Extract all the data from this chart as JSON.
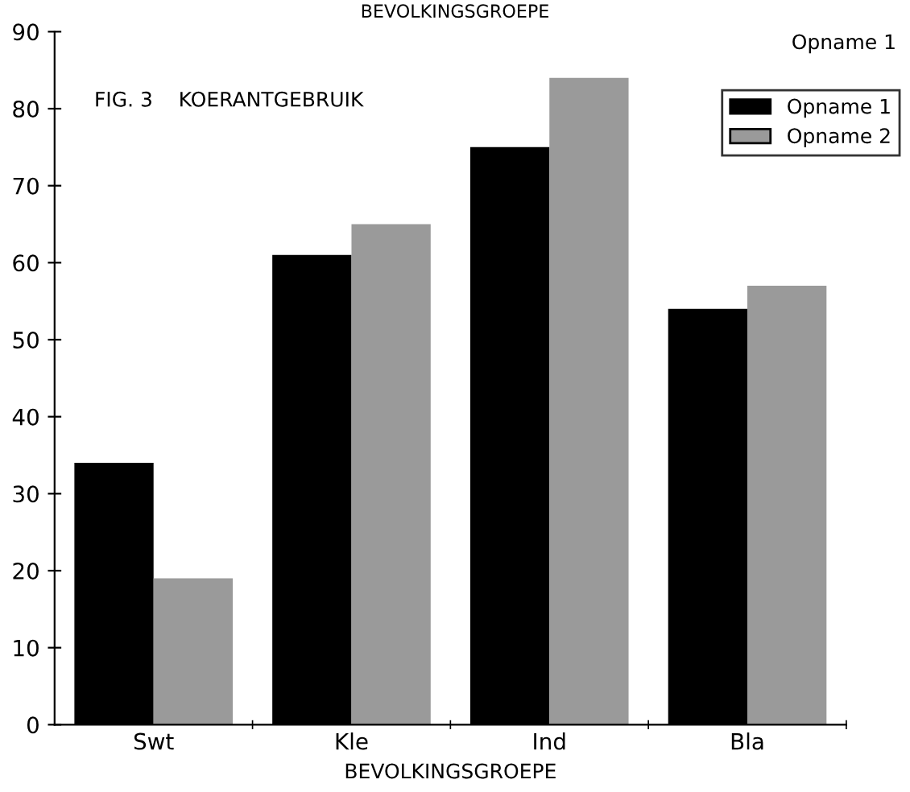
{
  "chart_data": {
    "type": "bar",
    "title": "FIG. 3    KOERANTGEBRUIK",
    "subtitle": "BEVOLKINGSGROEPE",
    "xlabel": "BEVOLKINGSGROEPE",
    "legend_title": "Opname 1",
    "categories": [
      "Swt",
      "Kle",
      "Ind",
      "Bla"
    ],
    "series": [
      {
        "name": "Opname 1",
        "color": "#000000",
        "values": [
          34,
          61,
          75,
          54
        ]
      },
      {
        "name": "Opname 2",
        "color": "#9a9a9a",
        "values": [
          19,
          65,
          84,
          57
        ]
      }
    ],
    "ylim": [
      0,
      90
    ],
    "yticks": [
      0,
      10,
      20,
      30,
      40,
      50,
      60,
      70,
      80,
      90
    ],
    "grid": false,
    "legend": "top right"
  }
}
